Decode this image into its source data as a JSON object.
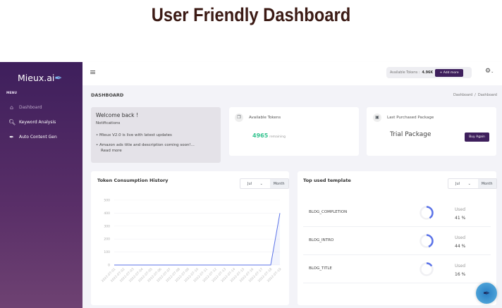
{
  "page_title": "User Friendly Dashboard",
  "sidebar": {
    "logo": "Mieux.ai",
    "menu_label": "MENU",
    "items": [
      {
        "label": "Dashboard",
        "icon": "home-icon",
        "active": true
      },
      {
        "label": "Keyword Analysis",
        "icon": "search-icon"
      },
      {
        "label": "Auto Content Gen",
        "icon": "feather-icon"
      }
    ]
  },
  "topbar": {
    "tokens_label": "Available Tokens :",
    "tokens_value": "4.96K",
    "add_more": "+ Add more"
  },
  "page": {
    "heading": "DASHBOARD",
    "breadcrumb": [
      "Dashboard",
      "Dashboard"
    ],
    "breadcrumb_sep": "/"
  },
  "welcome": {
    "title": "Welcome back !",
    "subtitle": "Notifications",
    "items": [
      "Mieux V2.0 is live with latest updates",
      "Amazon ads title and description coming soon!..."
    ],
    "read_more": "Read more"
  },
  "tokens_card": {
    "title": "Available Tokens",
    "value": "4965",
    "suffix": "remaining"
  },
  "package_card": {
    "title": "Last Purchased Package",
    "name": "Trial Package",
    "button": "Buy Again"
  },
  "colors": {
    "accent": "#3e1f5c",
    "green": "#34c38f",
    "line": "#5b73e8"
  },
  "chart_card": {
    "title": "Token Consumption History",
    "month": "Jul",
    "period": "Month"
  },
  "chart_data": {
    "type": "line",
    "title": "Token Consumption History",
    "ylim": [
      0,
      500
    ],
    "yticks": [
      0,
      100,
      200,
      300,
      400,
      500
    ],
    "grid": true,
    "x": [
      "2022-07-01",
      "2022-07-02",
      "2022-07-03",
      "2022-07-04",
      "2022-07-05",
      "2022-07-06",
      "2022-07-07",
      "2022-07-08",
      "2022-07-09",
      "2022-07-10",
      "2022-07-11",
      "2022-07-12",
      "2022-07-13",
      "2022-07-14",
      "2022-07-15",
      "2022-07-16",
      "2022-07-17",
      "2022-07-18",
      "2022-07-19"
    ],
    "values": [
      0,
      0,
      0,
      0,
      0,
      0,
      0,
      0,
      0,
      0,
      0,
      0,
      0,
      0,
      0,
      0,
      0,
      0,
      400
    ]
  },
  "templates_card": {
    "title": "Top used template",
    "month": "Jul",
    "period": "Month",
    "used_label": "Used",
    "items": [
      {
        "name": "BLOG_COMPLETION",
        "percent": 41,
        "label": "41 %"
      },
      {
        "name": "BLOG_INTRO",
        "percent": 44,
        "label": "44 %"
      },
      {
        "name": "BLOG_TITLE",
        "percent": 16,
        "label": "16 %"
      }
    ]
  }
}
